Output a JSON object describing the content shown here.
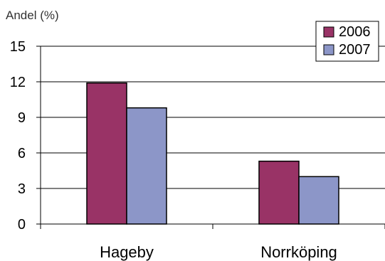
{
  "chart_data": {
    "type": "bar",
    "ylabel": "Andel (%)",
    "categories": [
      "Hageby",
      "Norrköping"
    ],
    "series": [
      {
        "name": "2006",
        "values": [
          11.9,
          5.3
        ],
        "color": "#993366"
      },
      {
        "name": "2007",
        "values": [
          9.8,
          4.0
        ],
        "color": "#8c96c8"
      }
    ],
    "ylim": [
      0,
      15
    ],
    "yticks": [
      "0",
      "3",
      "6",
      "9",
      "12",
      "15"
    ],
    "grid": true,
    "legend": "top-right"
  }
}
